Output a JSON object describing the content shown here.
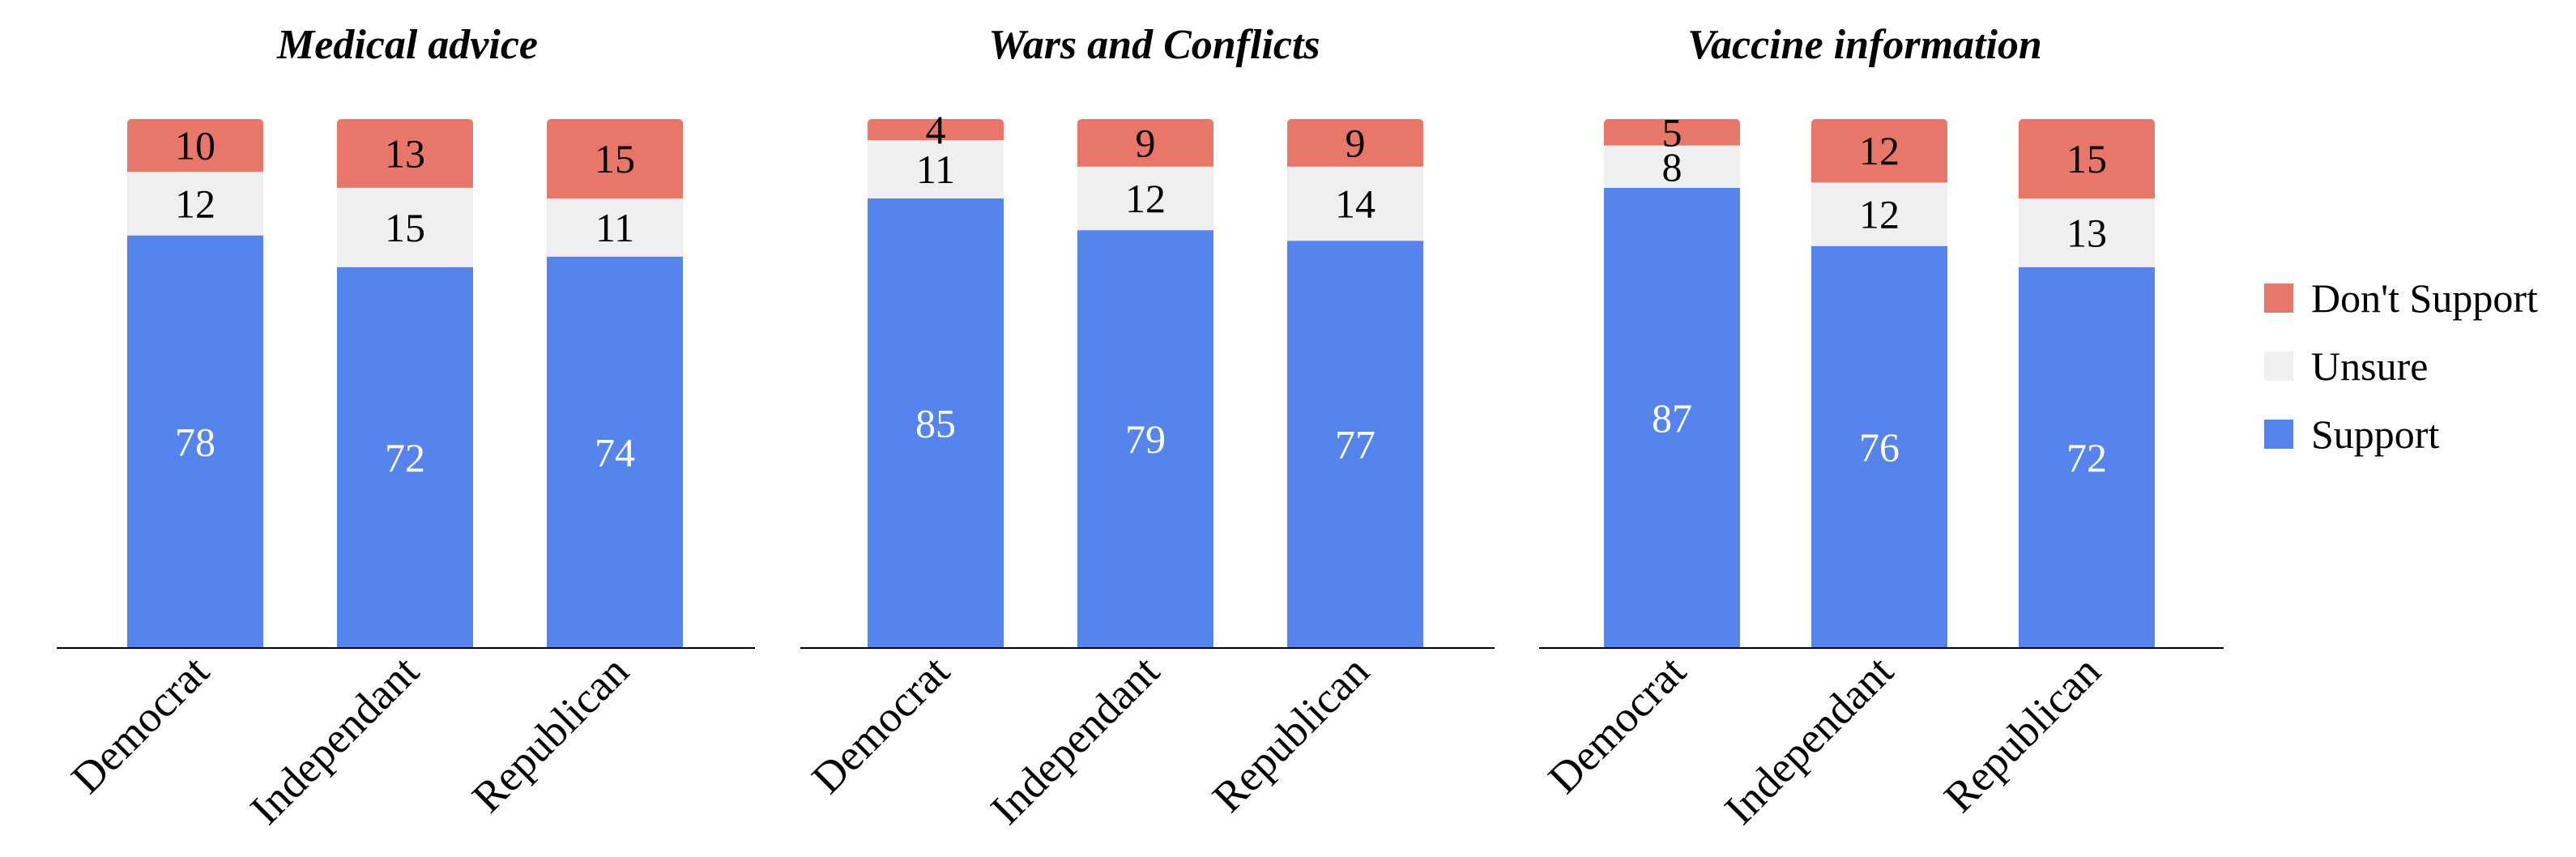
{
  "colors": {
    "dont_support": "#E8776A",
    "unsure": "#EFEFEF",
    "support": "#5585EC",
    "axis": "#000000",
    "label_dark": "#000000",
    "label_light": "#FFFFFF"
  },
  "legend": {
    "items": [
      {
        "key": "dont_support",
        "label": "Don't Support"
      },
      {
        "key": "unsure",
        "label": "Unsure"
      },
      {
        "key": "support",
        "label": "Support"
      }
    ],
    "position": "right"
  },
  "chart_data": [
    {
      "type": "bar",
      "stacked": true,
      "title": "Medical advice",
      "categories": [
        "Democrat",
        "Independant",
        "Republican"
      ],
      "series": [
        {
          "name": "Support",
          "values": [
            78,
            72,
            74
          ]
        },
        {
          "name": "Unsure",
          "values": [
            12,
            15,
            11
          ]
        },
        {
          "name": "Don't Support",
          "values": [
            10,
            13,
            15
          ]
        }
      ],
      "ylim": [
        0,
        100
      ]
    },
    {
      "type": "bar",
      "stacked": true,
      "title": "Wars and Conflicts",
      "categories": [
        "Democrat",
        "Independant",
        "Republican"
      ],
      "series": [
        {
          "name": "Support",
          "values": [
            85,
            79,
            77
          ]
        },
        {
          "name": "Unsure",
          "values": [
            11,
            12,
            14
          ]
        },
        {
          "name": "Don't Support",
          "values": [
            4,
            9,
            9
          ]
        }
      ],
      "ylim": [
        0,
        100
      ]
    },
    {
      "type": "bar",
      "stacked": true,
      "title": "Vaccine information",
      "categories": [
        "Democrat",
        "Independant",
        "Republican"
      ],
      "series": [
        {
          "name": "Support",
          "values": [
            87,
            76,
            72
          ]
        },
        {
          "name": "Unsure",
          "values": [
            8,
            12,
            13
          ]
        },
        {
          "name": "Don't Support",
          "values": [
            5,
            12,
            15
          ]
        }
      ],
      "ylim": [
        0,
        100
      ]
    }
  ]
}
